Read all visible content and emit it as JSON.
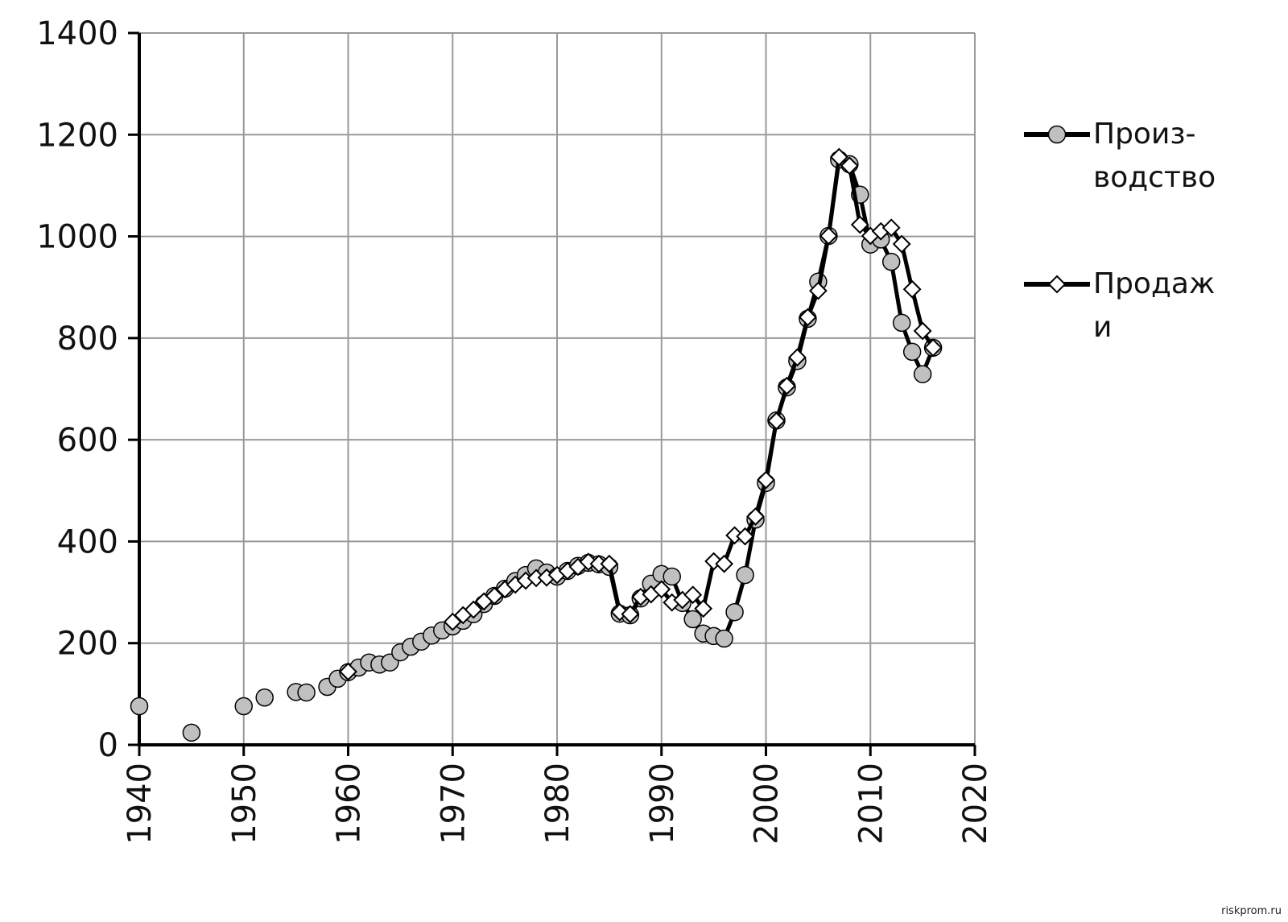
{
  "chart_data": {
    "type": "line",
    "x": [
      1940,
      1941,
      1942,
      1943,
      1944,
      1945,
      1946,
      1947,
      1948,
      1949,
      1950,
      1951,
      1952,
      1953,
      1954,
      1955,
      1956,
      1957,
      1958,
      1959,
      1960,
      1961,
      1962,
      1963,
      1964,
      1965,
      1966,
      1967,
      1968,
      1969,
      1970,
      1971,
      1972,
      1973,
      1974,
      1975,
      1976,
      1977,
      1978,
      1979,
      1980,
      1981,
      1982,
      1983,
      1984,
      1985,
      1986,
      1987,
      1988,
      1989,
      1990,
      1991,
      1992,
      1993,
      1994,
      1995,
      1996,
      1997,
      1998,
      1999,
      2000,
      2001,
      2002,
      2003,
      2004,
      2005,
      2006,
      2007,
      2008,
      2009,
      2010,
      2011,
      2012,
      2013,
      2014,
      2015,
      2016
    ],
    "series": [
      {
        "name": "Произ-водство",
        "color": "#c0c0c0",
        "marker": "circle",
        "values": [
          76,
          null,
          null,
          null,
          null,
          24,
          null,
          null,
          null,
          null,
          76,
          null,
          93,
          null,
          null,
          104,
          103,
          null,
          114,
          130,
          143,
          152,
          162,
          158,
          162,
          182,
          193,
          203,
          215,
          225,
          233,
          244,
          257,
          277,
          293,
          307,
          322,
          334,
          347,
          339,
          331,
          342,
          352,
          358,
          355,
          350,
          258,
          255,
          288,
          317,
          336,
          331,
          279,
          247,
          219,
          214,
          209,
          261,
          334,
          443,
          515,
          638,
          703,
          755,
          838,
          911,
          1001,
          1151,
          1142,
          1082,
          984,
          994,
          950,
          830,
          773,
          729,
          781
        ]
      },
      {
        "name": "Продажи",
        "color": "#ffffff",
        "marker": "diamond",
        "values": [
          null,
          null,
          null,
          null,
          null,
          null,
          null,
          null,
          null,
          null,
          null,
          null,
          null,
          null,
          null,
          null,
          null,
          null,
          null,
          null,
          144,
          null,
          null,
          null,
          null,
          null,
          null,
          null,
          null,
          null,
          242,
          255,
          266,
          282,
          293,
          306,
          315,
          323,
          328,
          329,
          334,
          342,
          350,
          360,
          356,
          356,
          261,
          257,
          291,
          296,
          306,
          280,
          285,
          295,
          268,
          361,
          356,
          412,
          410,
          449,
          521,
          637,
          706,
          762,
          841,
          893,
          1001,
          1156,
          1139,
          1023,
          1001,
          1010,
          1017,
          985,
          896,
          814,
          781
        ]
      }
    ],
    "xlim": [
      1940,
      2020
    ],
    "xticks": [
      1940,
      1950,
      1960,
      1970,
      1980,
      1990,
      2000,
      2010,
      2020
    ],
    "ylim": [
      0,
      1400
    ],
    "yticks": [
      0,
      200,
      400,
      600,
      800,
      1000,
      1200,
      1400
    ],
    "grid": true,
    "legend": "right",
    "watermark": "riskprom.ru"
  }
}
